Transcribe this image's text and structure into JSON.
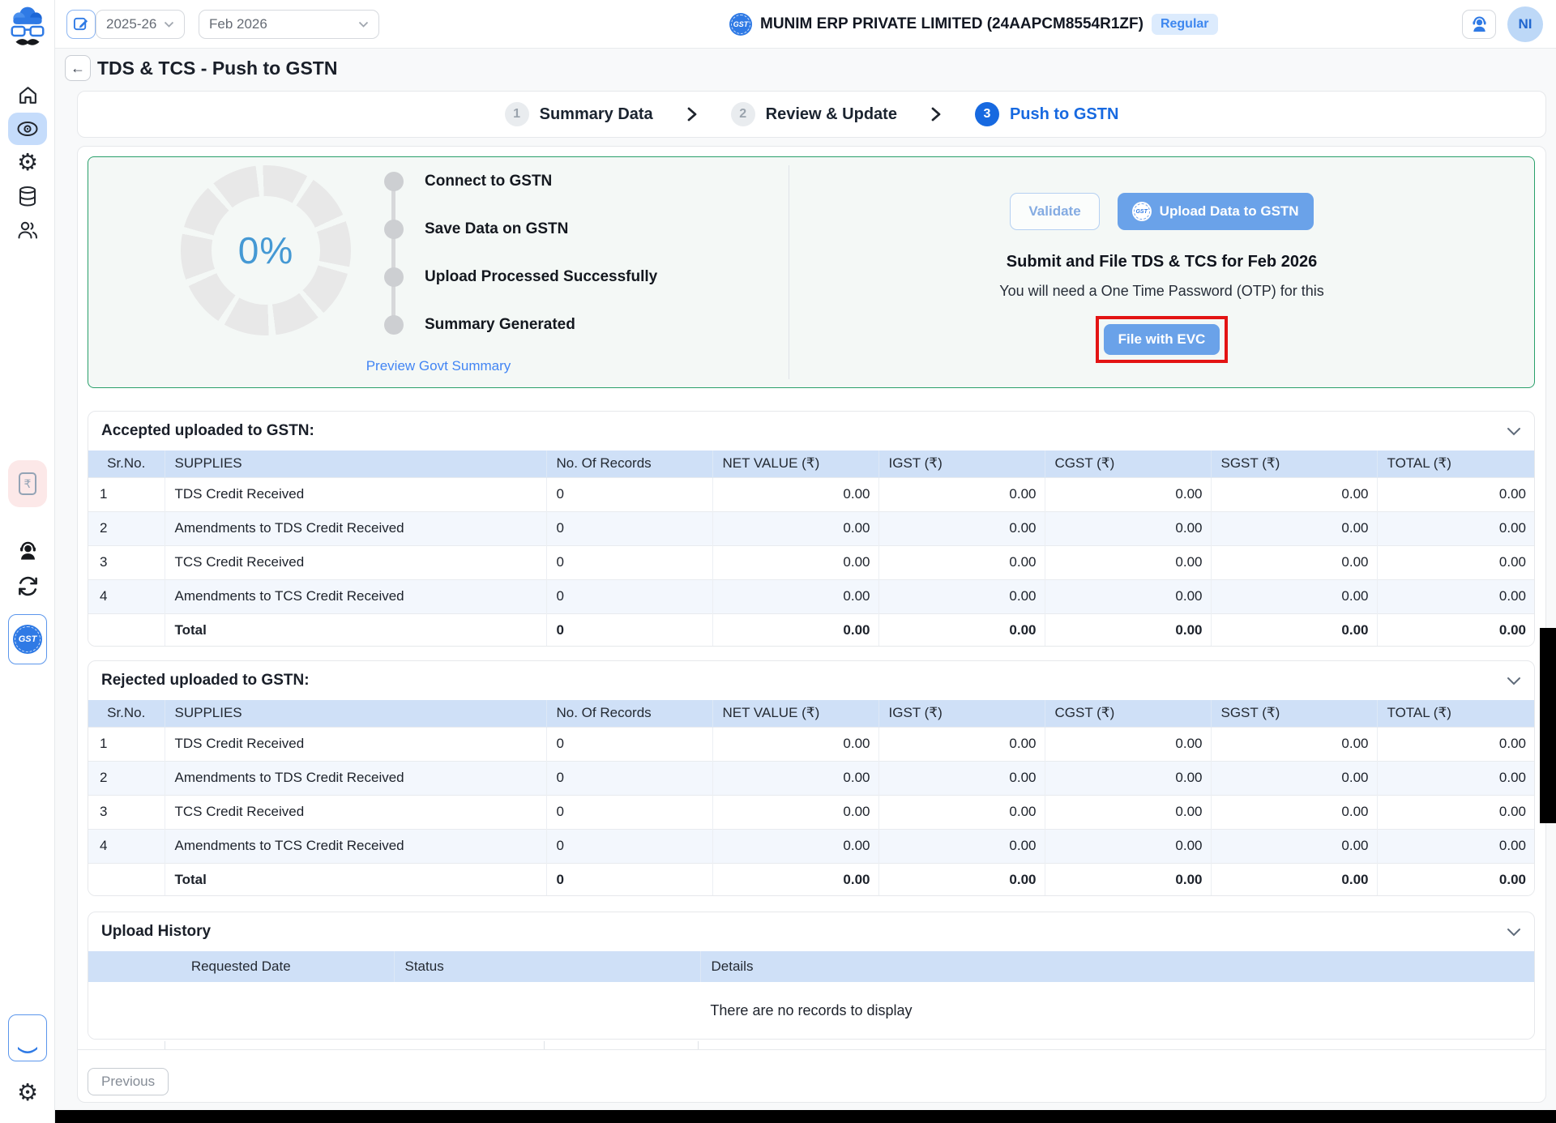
{
  "topbar": {
    "fiscal_year": "2025-26",
    "period": "Feb 2026",
    "company": {
      "name": "MUNIM ERP PRIVATE LIMITED (24AAPCM8554R1ZF)",
      "badge": "Regular"
    },
    "avatar_initials": "NI"
  },
  "sidebar": {
    "icons": [
      "munim-logo",
      "home",
      "eye",
      "gear",
      "database",
      "users",
      "rupee-document",
      "support-headset",
      "sync",
      "gst-badge",
      "gst-partial",
      "gear-bottom"
    ]
  },
  "page": {
    "back": "←",
    "title": "TDS & TCS - Push to GSTN"
  },
  "stepper": {
    "steps": [
      {
        "num": "1",
        "label": "Summary Data"
      },
      {
        "num": "2",
        "label": "Review & Update"
      },
      {
        "num": "3",
        "label": "Push to GSTN"
      }
    ]
  },
  "gstn_panel": {
    "progress_percent": "0%",
    "timeline": [
      "Connect to GSTN",
      "Save Data on GSTN",
      "Upload Processed Successfully",
      "Summary Generated"
    ],
    "preview_link": "Preview Govt Summary",
    "validate_label": "Validate",
    "upload_label": "Upload Data to GSTN",
    "submit_heading": "Submit and File TDS & TCS for Feb 2026",
    "otp_note": "You will need a One Time Password (OTP) for this",
    "file_evc_label": "File with EVC"
  },
  "tables": {
    "columns": [
      "Sr.No.",
      "SUPPLIES",
      "No. Of Records",
      "NET VALUE (₹)",
      "IGST (₹)",
      "CGST (₹)",
      "SGST (₹)",
      "TOTAL (₹)"
    ],
    "accepted": {
      "title": "Accepted uploaded to GSTN:",
      "rows": [
        [
          "1",
          "TDS Credit Received",
          "0",
          "0.00",
          "0.00",
          "0.00",
          "0.00",
          "0.00"
        ],
        [
          "2",
          "Amendments to TDS Credit Received",
          "0",
          "0.00",
          "0.00",
          "0.00",
          "0.00",
          "0.00"
        ],
        [
          "3",
          "TCS Credit Received",
          "0",
          "0.00",
          "0.00",
          "0.00",
          "0.00",
          "0.00"
        ],
        [
          "4",
          "Amendments to TCS Credit Received",
          "0",
          "0.00",
          "0.00",
          "0.00",
          "0.00",
          "0.00"
        ]
      ],
      "total": [
        "",
        "Total",
        "0",
        "0.00",
        "0.00",
        "0.00",
        "0.00",
        "0.00"
      ]
    },
    "rejected": {
      "title": "Rejected uploaded to GSTN:",
      "rows": [
        [
          "1",
          "TDS Credit Received",
          "0",
          "0.00",
          "0.00",
          "0.00",
          "0.00",
          "0.00"
        ],
        [
          "2",
          "Amendments to TDS Credit Received",
          "0",
          "0.00",
          "0.00",
          "0.00",
          "0.00",
          "0.00"
        ],
        [
          "3",
          "TCS Credit Received",
          "0",
          "0.00",
          "0.00",
          "0.00",
          "0.00",
          "0.00"
        ],
        [
          "4",
          "Amendments to TCS Credit Received",
          "0",
          "0.00",
          "0.00",
          "0.00",
          "0.00",
          "0.00"
        ]
      ],
      "total": [
        "",
        "Total",
        "0",
        "0.00",
        "0.00",
        "0.00",
        "0.00",
        "0.00"
      ]
    },
    "history": {
      "title": "Upload History",
      "columns": [
        "Requested Date",
        "Status",
        "Details"
      ],
      "empty": "There are no records to display"
    }
  },
  "footer": {
    "previous_label": "Previous"
  },
  "colors": {
    "accent_blue": "#1769e0",
    "button_blue": "#6aa2e9",
    "panel_green_border": "#2aa06b",
    "annotation_red": "#e31414",
    "table_header_bg": "#cfe0f7",
    "active_nav_bg": "#c5dcfb",
    "billing_nav_bg": "#fce8e8",
    "regular_badge_bg": "#dcebfd"
  }
}
